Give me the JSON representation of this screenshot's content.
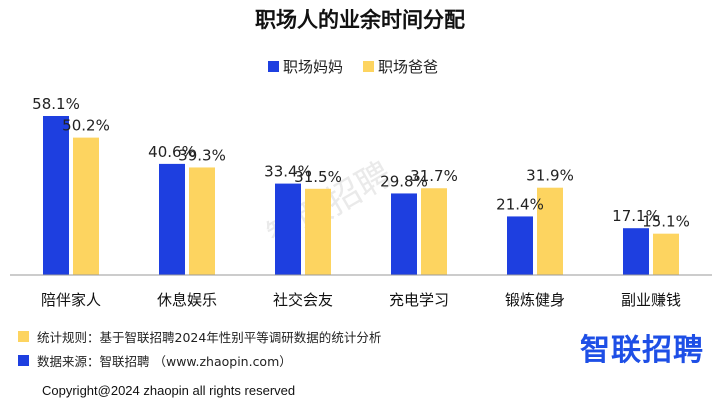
{
  "chart_data": {
    "type": "bar",
    "title": "职场人的业余时间分配",
    "categories": [
      "陪伴家人",
      "休息娱乐",
      "社交会友",
      "充电学习",
      "锻炼健身",
      "副业赚钱"
    ],
    "series": [
      {
        "name": "职场妈妈",
        "color": "#1e3fe0",
        "values": [
          58.1,
          40.6,
          33.4,
          29.8,
          21.4,
          17.1
        ]
      },
      {
        "name": "职场爸爸",
        "color": "#fdd460",
        "values": [
          50.2,
          39.3,
          31.5,
          31.7,
          31.9,
          15.1
        ]
      }
    ],
    "value_labels": [
      [
        "58.1%",
        "40.6%",
        "33.4%",
        "29.8%",
        "21.4%",
        "17.1%"
      ],
      [
        "50.2%",
        "39.3%",
        "31.5%",
        "31.7%",
        "31.9%",
        "15.1%"
      ]
    ],
    "ylim": [
      0,
      58.1
    ],
    "legend": "top-center",
    "grid": false
  },
  "watermark": "智联招聘",
  "notes": {
    "stat_rule": "统计规则：基于智联招聘2024年性别平等调研数据的统计分析",
    "stat_rule_color": "#fdd460",
    "source": "数据来源：智联招聘 （www.zhaopin.com）",
    "source_color": "#1e3fe0"
  },
  "logo": "智联招聘",
  "copyright": "Copyright@2024 zhaopin all rights reserved"
}
